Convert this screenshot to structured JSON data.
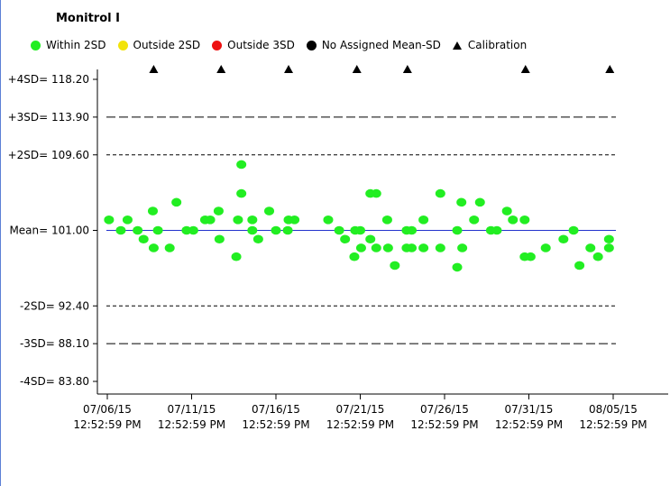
{
  "title": "Monitrol I",
  "legend": [
    {
      "label": "Within 2SD",
      "color": "#22ee22",
      "shape": "circle"
    },
    {
      "label": "Outside 2SD",
      "color": "#f2e30a",
      "shape": "circle"
    },
    {
      "label": "Outside 3SD",
      "color": "#ee1111",
      "shape": "circle"
    },
    {
      "label": "No Assigned Mean-SD",
      "color": "#000000",
      "shape": "circle"
    },
    {
      "label": "Calibration",
      "color": "#000000",
      "shape": "triangle"
    }
  ],
  "chart_data": {
    "type": "scatter",
    "title": "Monitrol I",
    "mean": 101.0,
    "y_levels": [
      {
        "label": "+4SD=",
        "value": 118.2,
        "text": "118.20",
        "line": "none"
      },
      {
        "label": "+3SD=",
        "value": 113.9,
        "text": "113.90",
        "line": "longdash"
      },
      {
        "label": "+2SD=",
        "value": 109.6,
        "text": "109.60",
        "line": "shortdash"
      },
      {
        "label": "Mean=",
        "value": 101.0,
        "text": "101.00",
        "line": "solid"
      },
      {
        "label": "-2SD=",
        "value": 92.4,
        "text": "92.40",
        "line": "shortdash"
      },
      {
        "label": "-3SD=",
        "value": 88.1,
        "text": "88.10",
        "line": "longdash"
      },
      {
        "label": "-4SD=",
        "value": 83.8,
        "text": "83.80",
        "line": "none"
      }
    ],
    "ylim": [
      83.8,
      118.2
    ],
    "x_ticks": [
      {
        "day": 0,
        "date": "07/06/15",
        "time": "12:52:59 PM"
      },
      {
        "day": 5,
        "date": "07/11/15",
        "time": "12:52:59 PM"
      },
      {
        "day": 10,
        "date": "07/16/15",
        "time": "12:52:59 PM"
      },
      {
        "day": 15,
        "date": "07/21/15",
        "time": "12:52:59 PM"
      },
      {
        "day": 20,
        "date": "07/26/15",
        "time": "12:52:59 PM"
      },
      {
        "day": 25,
        "date": "07/31/15",
        "time": "12:52:59 PM"
      },
      {
        "day": 30,
        "date": "08/05/15",
        "time": "12:52:59 PM"
      }
    ],
    "xlim": [
      0,
      30
    ],
    "calibration_days": [
      2.75,
      6.75,
      10.75,
      14.8,
      17.8,
      24.8,
      29.8
    ],
    "series": [
      {
        "status": "within-2sd",
        "color": "#22ee22",
        "points": [
          [
            0.1,
            102.2
          ],
          [
            0.8,
            101.0
          ],
          [
            1.2,
            102.2
          ],
          [
            1.8,
            101.0
          ],
          [
            2.15,
            100.0
          ],
          [
            2.7,
            103.2
          ],
          [
            2.75,
            99.0
          ],
          [
            3.0,
            101.0
          ],
          [
            3.7,
            99.0
          ],
          [
            4.1,
            104.2
          ],
          [
            4.7,
            101.0
          ],
          [
            5.1,
            101.0
          ],
          [
            5.8,
            102.2
          ],
          [
            6.1,
            102.2
          ],
          [
            6.6,
            103.2
          ],
          [
            6.65,
            100.0
          ],
          [
            7.65,
            98.0
          ],
          [
            7.75,
            102.2
          ],
          [
            7.95,
            108.5
          ],
          [
            7.95,
            105.2
          ],
          [
            8.6,
            102.2
          ],
          [
            8.6,
            101.0
          ],
          [
            8.95,
            100.0
          ],
          [
            9.6,
            103.2
          ],
          [
            10.0,
            101.0
          ],
          [
            10.7,
            101.0
          ],
          [
            10.75,
            102.2
          ],
          [
            11.1,
            102.2
          ],
          [
            13.1,
            102.2
          ],
          [
            13.75,
            101.0
          ],
          [
            14.1,
            100.0
          ],
          [
            14.65,
            98.0
          ],
          [
            14.7,
            101.0
          ],
          [
            15.0,
            101.0
          ],
          [
            15.05,
            99.0
          ],
          [
            15.6,
            100.0
          ],
          [
            15.6,
            105.2
          ],
          [
            15.95,
            105.2
          ],
          [
            15.95,
            99.0
          ],
          [
            16.6,
            102.2
          ],
          [
            16.65,
            99.0
          ],
          [
            17.05,
            97.0
          ],
          [
            17.75,
            101.0
          ],
          [
            17.75,
            99.0
          ],
          [
            18.05,
            101.0
          ],
          [
            18.05,
            99.0
          ],
          [
            18.75,
            102.2
          ],
          [
            18.75,
            99.0
          ],
          [
            19.75,
            105.2
          ],
          [
            19.75,
            99.0
          ],
          [
            20.75,
            101.0
          ],
          [
            20.75,
            96.8
          ],
          [
            21.0,
            104.2
          ],
          [
            21.05,
            99.0
          ],
          [
            21.75,
            102.2
          ],
          [
            22.1,
            104.2
          ],
          [
            22.75,
            101.0
          ],
          [
            23.1,
            101.0
          ],
          [
            23.7,
            103.2
          ],
          [
            24.05,
            102.2
          ],
          [
            24.75,
            102.2
          ],
          [
            24.75,
            98.0
          ],
          [
            25.1,
            98.0
          ],
          [
            26.0,
            99.0
          ],
          [
            27.05,
            100.0
          ],
          [
            27.65,
            101.0
          ],
          [
            28.0,
            97.0
          ],
          [
            28.65,
            99.0
          ],
          [
            29.1,
            98.0
          ],
          [
            29.75,
            100.0
          ],
          [
            29.75,
            99.0
          ]
        ]
      }
    ],
    "colors": {
      "mean_line": "#2233cc",
      "sd_lines": "#000000",
      "axis": "#000000"
    }
  }
}
